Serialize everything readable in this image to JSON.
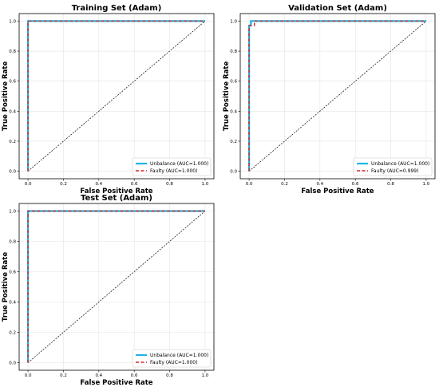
{
  "colors": {
    "unbalance": "#1cb5e6",
    "faulty": "#d62728",
    "diagonal": "#000000",
    "grid": "#e3e3e3",
    "frame": "#000000"
  },
  "chart_data": [
    {
      "type": "line",
      "title": "Training Set (Adam)",
      "xlabel": "False Positive Rate",
      "ylabel": "True Positive Rate",
      "xlim": [
        -0.05,
        1.05
      ],
      "ylim": [
        -0.05,
        1.05
      ],
      "xticks": [
        "0.0",
        "0.2",
        "0.4",
        "0.6",
        "0.8",
        "1.0"
      ],
      "yticks": [
        "0.0",
        "0.2",
        "0.4",
        "0.6",
        "0.8",
        "1.0"
      ],
      "grid": true,
      "legend_position": "lower-right",
      "series": [
        {
          "name": "Unbalance (AUC=1.000)",
          "style": "solid",
          "x": [
            0,
            0,
            1
          ],
          "y": [
            0,
            1,
            1
          ]
        },
        {
          "name": "Faulty (AUC=1.000)",
          "style": "dashed",
          "x": [
            0,
            0,
            1
          ],
          "y": [
            0,
            1,
            1
          ]
        }
      ],
      "reference_line": {
        "x": [
          0,
          1
        ],
        "y": [
          0,
          1
        ]
      }
    },
    {
      "type": "line",
      "title": "Validation Set (Adam)",
      "xlabel": "False Positive Rate",
      "ylabel": "True Positive Rate",
      "xlim": [
        -0.05,
        1.05
      ],
      "ylim": [
        -0.05,
        1.05
      ],
      "xticks": [
        "0.0",
        "0.2",
        "0.4",
        "0.6",
        "0.8",
        "1.0"
      ],
      "yticks": [
        "0.0",
        "0.2",
        "0.4",
        "0.6",
        "0.8",
        "1.0"
      ],
      "grid": true,
      "legend_position": "lower-right",
      "series": [
        {
          "name": "Unbalance (AUC=1.000)",
          "style": "solid",
          "x": [
            0,
            0,
            0.01,
            0.01,
            1
          ],
          "y": [
            0,
            0.97,
            0.97,
            1,
            1
          ]
        },
        {
          "name": "Faulty (AUC=0.999)",
          "style": "dashed",
          "x": [
            0,
            0,
            0.03,
            0.03,
            1
          ],
          "y": [
            0,
            0.97,
            0.97,
            1,
            1
          ]
        }
      ],
      "reference_line": {
        "x": [
          0,
          1
        ],
        "y": [
          0,
          1
        ]
      }
    },
    {
      "type": "line",
      "title": "Test Set (Adam)",
      "xlabel": "False Positive Rate",
      "ylabel": "True Positive Rate",
      "xlim": [
        -0.05,
        1.05
      ],
      "ylim": [
        -0.05,
        1.05
      ],
      "xticks": [
        "0.0",
        "0.2",
        "0.4",
        "0.6",
        "0.8",
        "1.0"
      ],
      "yticks": [
        "0.0",
        "0.2",
        "0.4",
        "0.6",
        "0.8",
        "1.0"
      ],
      "grid": true,
      "legend_position": "lower-right",
      "series": [
        {
          "name": "Unbalance (AUC=1.000)",
          "style": "solid",
          "x": [
            0,
            0,
            1
          ],
          "y": [
            0,
            1,
            1
          ]
        },
        {
          "name": "Faulty (AUC=1.000)",
          "style": "dashed",
          "x": [
            0,
            0,
            1
          ],
          "y": [
            0,
            1,
            1
          ]
        }
      ],
      "reference_line": {
        "x": [
          0,
          1
        ],
        "y": [
          0,
          1
        ]
      }
    }
  ]
}
